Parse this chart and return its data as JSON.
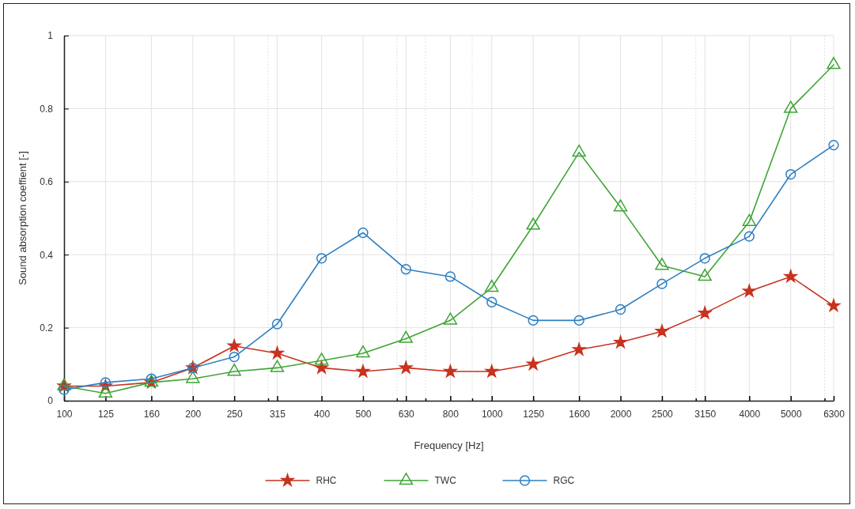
{
  "chart_data": {
    "type": "line",
    "xlabel": "Frequency [Hz]",
    "ylabel": "Sound absorption coeffient [-]",
    "log": "x",
    "grid": true,
    "legend": "bottom",
    "x": [
      100,
      125,
      160,
      200,
      250,
      315,
      400,
      500,
      630,
      800,
      1000,
      1250,
      1600,
      2000,
      2500,
      3150,
      4000,
      5000,
      6300
    ],
    "xlim": [
      100,
      6300
    ],
    "xticks": [
      100,
      125,
      160,
      200,
      250,
      {
        "value": 300,
        "label": null
      },
      315,
      400,
      500,
      {
        "value": 600,
        "label": null
      },
      630,
      {
        "value": 700,
        "label": null
      },
      800,
      {
        "value": 900,
        "label": null
      },
      1000,
      1250,
      1600,
      2000,
      2500,
      {
        "value": 3000,
        "label": null
      },
      3150,
      4000,
      5000,
      {
        "value": 6000,
        "label": null
      },
      6300
    ],
    "ylim": [
      0,
      1
    ],
    "yticks": [
      0,
      0.2,
      0.4,
      0.6,
      0.8,
      1
    ],
    "line_style": "solid",
    "series": [
      {
        "name": "RHC",
        "color": "#c8321e",
        "marker": "star",
        "values": [
          0.04,
          0.04,
          0.05,
          0.09,
          0.15,
          0.13,
          0.09,
          0.08,
          0.09,
          0.08,
          0.08,
          0.1,
          0.14,
          0.16,
          0.19,
          0.24,
          0.3,
          0.34,
          0.26
        ]
      },
      {
        "name": "TWC",
        "color": "#3fa535",
        "marker": "triangle",
        "values": [
          0.04,
          0.02,
          0.05,
          0.06,
          0.08,
          0.09,
          0.11,
          0.13,
          0.17,
          0.22,
          0.31,
          0.48,
          0.68,
          0.53,
          0.37,
          0.34,
          0.49,
          0.8,
          0.92
        ]
      },
      {
        "name": "RGC",
        "color": "#2f7fc1",
        "marker": "circle",
        "values": [
          0.03,
          0.05,
          0.06,
          0.09,
          0.12,
          0.21,
          0.39,
          0.46,
          0.36,
          0.34,
          0.27,
          0.22,
          0.22,
          0.25,
          0.32,
          0.39,
          0.45,
          0.62,
          0.7
        ]
      }
    ]
  }
}
